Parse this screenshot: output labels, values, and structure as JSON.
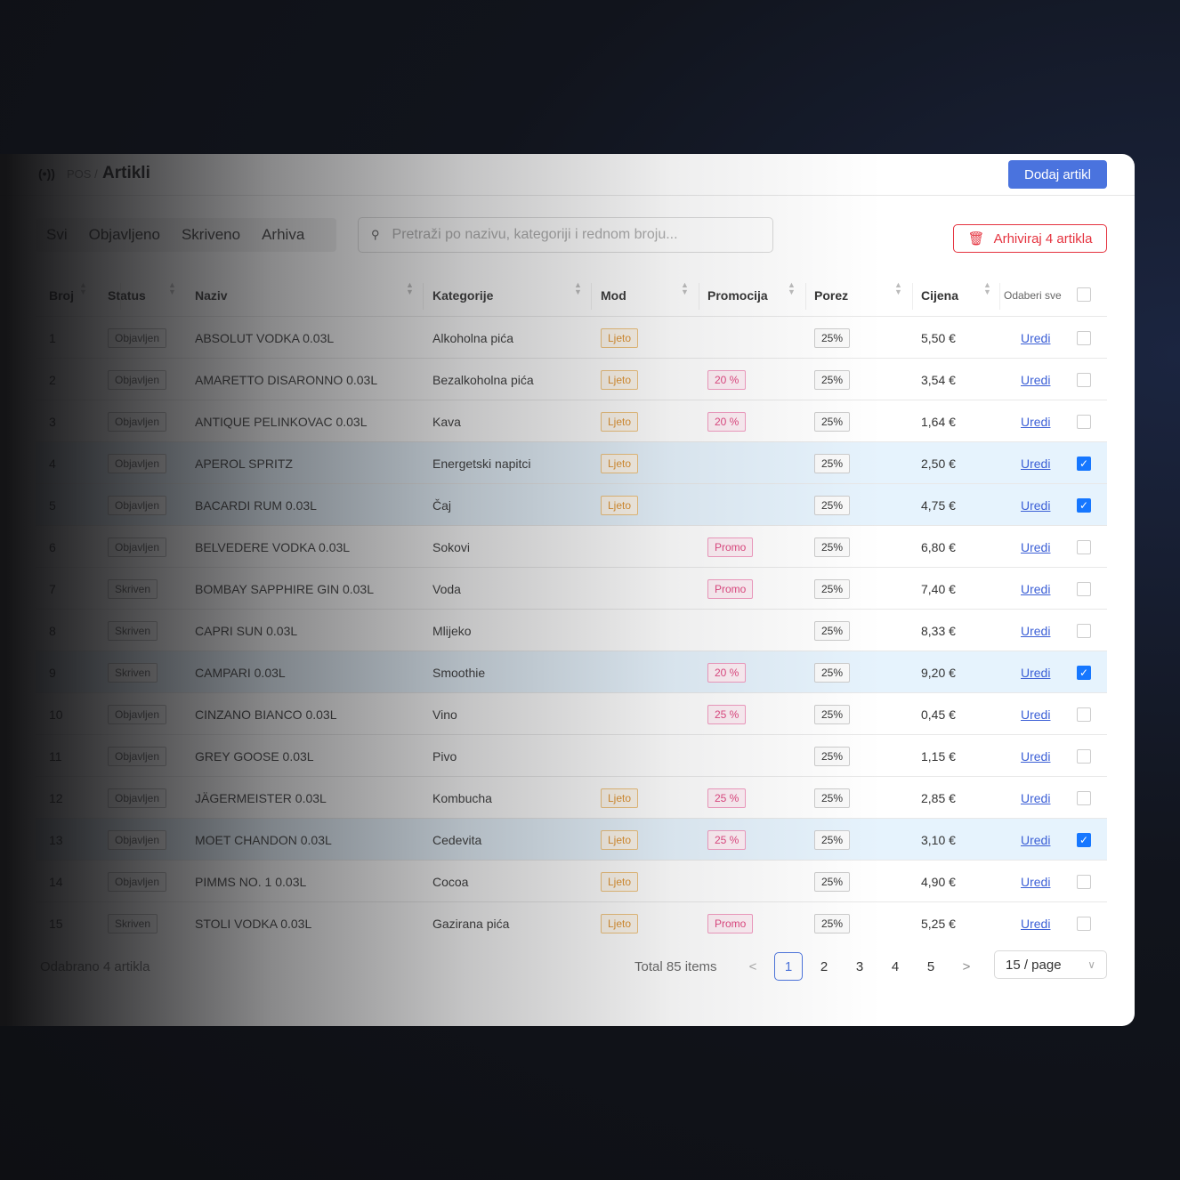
{
  "header": {
    "logo": "(•))",
    "crumb": "POS /",
    "title": "Artikli",
    "add_button": "Dodaj artikl"
  },
  "tabs": [
    "Svi",
    "Objavljeno",
    "Skriveno",
    "Arhiva"
  ],
  "search": {
    "placeholder": "Pretraži po nazivu, kategoriji i rednom broju..."
  },
  "archive_button": "Arhiviraj 4 artikla",
  "columns": {
    "broj": "Broj",
    "status": "Status",
    "naziv": "Naziv",
    "kategorije": "Kategorije",
    "mod": "Mod",
    "promocija": "Promocija",
    "porez": "Porez",
    "cijena": "Cijena",
    "select_all": "Odaberi sve"
  },
  "edit_label": "Uredi",
  "rows": [
    {
      "n": "1",
      "status": "Objavljen",
      "name": "ABSOLUT VODKA 0.03L",
      "cat": "Alkoholna pića",
      "mod": "Ljeto",
      "promo": "",
      "tax": "25%",
      "price": "5,50 €",
      "sel": false
    },
    {
      "n": "2",
      "status": "Objavljen",
      "name": "AMARETTO DISARONNO 0.03L",
      "cat": "Bezalkoholna pića",
      "mod": "Ljeto",
      "promo": "20 %",
      "tax": "25%",
      "price": "3,54 €",
      "sel": false
    },
    {
      "n": "3",
      "status": "Objavljen",
      "name": "ANTIQUE PELINKOVAC 0.03L",
      "cat": "Kava",
      "mod": "Ljeto",
      "promo": "20 %",
      "tax": "25%",
      "price": "1,64 €",
      "sel": false
    },
    {
      "n": "4",
      "status": "Objavljen",
      "name": "APEROL SPRITZ",
      "cat": "Energetski napitci",
      "mod": "Ljeto",
      "promo": "",
      "tax": "25%",
      "price": "2,50 €",
      "sel": true
    },
    {
      "n": "5",
      "status": "Objavljen",
      "name": "BACARDI RUM 0.03L",
      "cat": "Čaj",
      "mod": "Ljeto",
      "promo": "",
      "tax": "25%",
      "price": "4,75 €",
      "sel": true
    },
    {
      "n": "6",
      "status": "Objavljen",
      "name": "BELVEDERE VODKA 0.03L",
      "cat": "Sokovi",
      "mod": "",
      "promo": "Promo",
      "tax": "25%",
      "price": "6,80 €",
      "sel": false
    },
    {
      "n": "7",
      "status": "Skriven",
      "name": "BOMBAY SAPPHIRE GIN 0.03L",
      "cat": "Voda",
      "mod": "",
      "promo": "Promo",
      "tax": "25%",
      "price": "7,40 €",
      "sel": false
    },
    {
      "n": "8",
      "status": "Skriven",
      "name": "CAPRI SUN 0.03L",
      "cat": "Mlijeko",
      "mod": "",
      "promo": "",
      "tax": "25%",
      "price": "8,33 €",
      "sel": false
    },
    {
      "n": "9",
      "status": "Skriven",
      "name": "CAMPARI 0.03L",
      "cat": "Smoothie",
      "mod": "",
      "promo": "20 %",
      "tax": "25%",
      "price": "9,20 €",
      "sel": true
    },
    {
      "n": "10",
      "status": "Objavljen",
      "name": "CINZANO BIANCO 0.03L",
      "cat": "Vino",
      "mod": "",
      "promo": "25 %",
      "tax": "25%",
      "price": "0,45 €",
      "sel": false
    },
    {
      "n": "11",
      "status": "Objavljen",
      "name": "GREY GOOSE 0.03L",
      "cat": "Pivo",
      "mod": "",
      "promo": "",
      "tax": "25%",
      "price": "1,15 €",
      "sel": false
    },
    {
      "n": "12",
      "status": "Objavljen",
      "name": "JÄGERMEISTER 0.03L",
      "cat": "Kombucha",
      "mod": "Ljeto",
      "promo": "25 %",
      "tax": "25%",
      "price": "2,85 €",
      "sel": false
    },
    {
      "n": "13",
      "status": "Objavljen",
      "name": "MOET CHANDON 0.03L",
      "cat": "Cedevita",
      "mod": "Ljeto",
      "promo": "25 %",
      "tax": "25%",
      "price": "3,10 €",
      "sel": true
    },
    {
      "n": "14",
      "status": "Objavljen",
      "name": "PIMMS NO. 1 0.03L",
      "cat": "Cocoa",
      "mod": "Ljeto",
      "promo": "",
      "tax": "25%",
      "price": "4,90 €",
      "sel": false
    },
    {
      "n": "15",
      "status": "Skriven",
      "name": "STOLI VODKA 0.03L",
      "cat": "Gazirana pića",
      "mod": "Ljeto",
      "promo": "Promo",
      "tax": "25%",
      "price": "5,25 €",
      "sel": false
    }
  ],
  "footer": {
    "selected": "Odabrano 4 artikla",
    "total": "Total 85 items",
    "pages": [
      "1",
      "2",
      "3",
      "4",
      "5"
    ],
    "current_page": "1",
    "page_size": "15 / page",
    "prev": "<",
    "next": ">"
  },
  "colors": {
    "accent": "#4a73de",
    "danger": "#e5333f",
    "selected_row": "#e6f3fd",
    "checkbox": "#1677ff"
  }
}
